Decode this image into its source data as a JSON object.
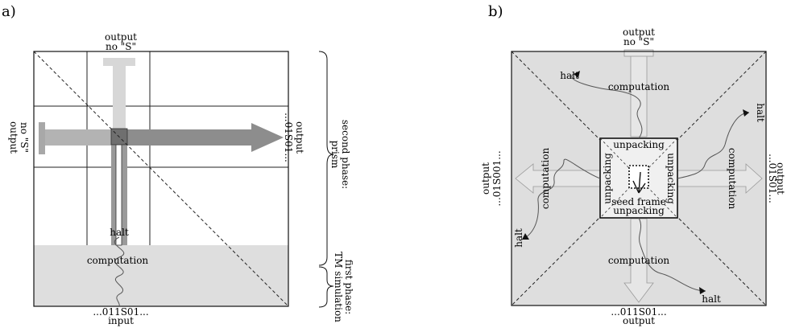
{
  "panel_a": {
    "label": "a)",
    "top_output": "output",
    "top_output_sub": "no \"S\"",
    "left_output": "output",
    "left_output_sub": "no \"S\"",
    "right_output": "output",
    "right_output_sub": "...01S01...",
    "halt": "halt",
    "computation": "computation",
    "bottom_value": "...011S01...",
    "bottom_input": "input",
    "brace_upper_1": "second phase:",
    "brace_upper_2": "prism",
    "brace_lower_1": "first phase:",
    "brace_lower_2": "TM simulation"
  },
  "panel_b": {
    "label": "b)",
    "top_output": "output",
    "top_output_sub": "no \"S\"",
    "halt_tl": "halt",
    "halt_tr": "halt",
    "halt_bl": "halt",
    "halt_br": "halt",
    "comp_top": "computation",
    "comp_left": "computation",
    "comp_right": "computation",
    "comp_bottom": "computation",
    "unpack_top": "unpacking",
    "unpack_left": "unpacking",
    "unpack_right": "unpacking",
    "unpack_bottom": "unpacking",
    "seed_frame": "seed frame",
    "left_output": "output",
    "left_output_sub": "...01S001...",
    "right_output": "output",
    "right_output_sub": "...01S01...",
    "bottom_value": "...011S01...",
    "bottom_output": "output"
  },
  "colors": {
    "bg_gray": "#dedede",
    "arrow_dark": "#8a8a8a",
    "arrow_light": "#c9c9c9",
    "arrow_mid": "#a9a9a9"
  }
}
